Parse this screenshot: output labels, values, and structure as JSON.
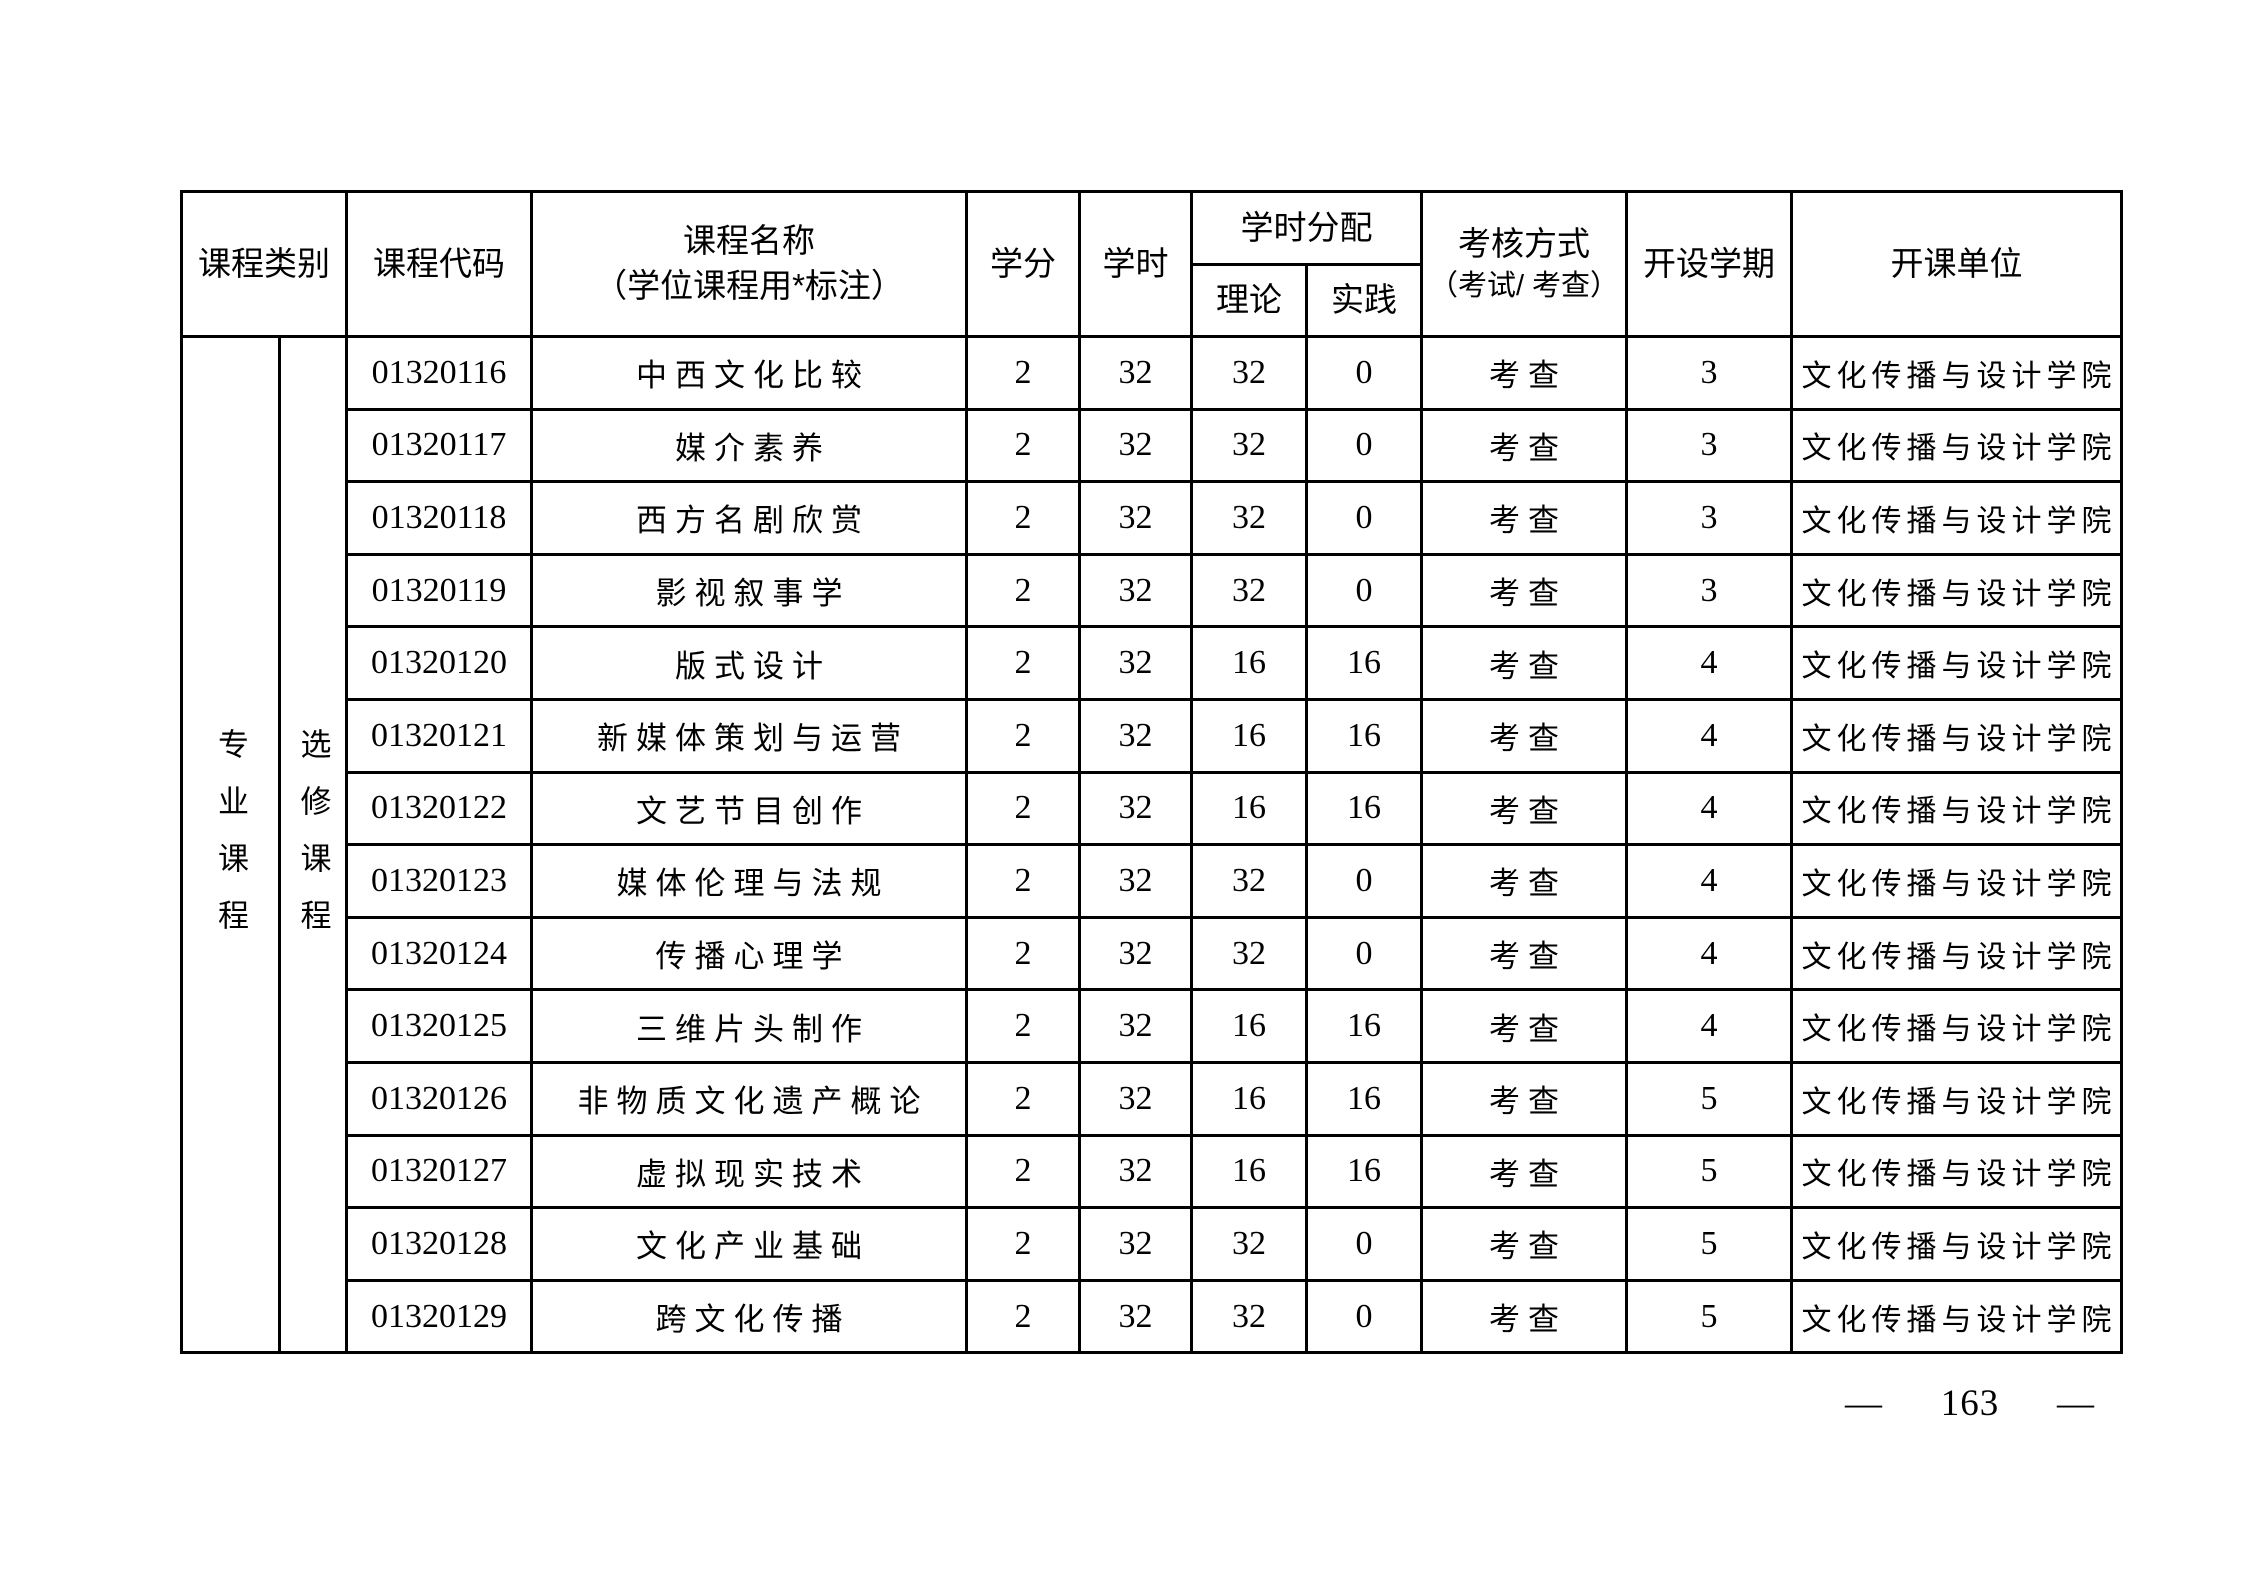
{
  "colors": {
    "ink": "#000000",
    "paper": "#ffffff"
  },
  "page": {
    "dash": "—",
    "number": "163"
  },
  "table": {
    "headers": {
      "category": "课程类别",
      "code": "课程代码",
      "name_line1": "课程名称",
      "name_line2": "（学位课程用*标注）",
      "credits": "学分",
      "hours": "学时",
      "hours_allocation": "学时分配",
      "theory": "理论",
      "practice": "实践",
      "assessment_line1": "考核方式",
      "assessment_line2": "（考试/ 考查）",
      "semester": "开设学期",
      "unit": "开课单位"
    },
    "categories": {
      "primary": "专业课程",
      "secondary": "选修课程"
    },
    "rows": [
      {
        "code": "01320116",
        "name": "中西文化比较",
        "credits": "2",
        "hours": "32",
        "theory": "32",
        "practice": "0",
        "assessment": "考查",
        "semester": "3",
        "unit": "文化传播与设计学院"
      },
      {
        "code": "01320117",
        "name": "媒介素养",
        "credits": "2",
        "hours": "32",
        "theory": "32",
        "practice": "0",
        "assessment": "考查",
        "semester": "3",
        "unit": "文化传播与设计学院"
      },
      {
        "code": "01320118",
        "name": "西方名剧欣赏",
        "credits": "2",
        "hours": "32",
        "theory": "32",
        "practice": "0",
        "assessment": "考查",
        "semester": "3",
        "unit": "文化传播与设计学院"
      },
      {
        "code": "01320119",
        "name": "影视叙事学",
        "credits": "2",
        "hours": "32",
        "theory": "32",
        "practice": "0",
        "assessment": "考查",
        "semester": "3",
        "unit": "文化传播与设计学院"
      },
      {
        "code": "01320120",
        "name": "版式设计",
        "credits": "2",
        "hours": "32",
        "theory": "16",
        "practice": "16",
        "assessment": "考查",
        "semester": "4",
        "unit": "文化传播与设计学院"
      },
      {
        "code": "01320121",
        "name": "新媒体策划与运营",
        "credits": "2",
        "hours": "32",
        "theory": "16",
        "practice": "16",
        "assessment": "考查",
        "semester": "4",
        "unit": "文化传播与设计学院"
      },
      {
        "code": "01320122",
        "name": "文艺节目创作",
        "credits": "2",
        "hours": "32",
        "theory": "16",
        "practice": "16",
        "assessment": "考查",
        "semester": "4",
        "unit": "文化传播与设计学院"
      },
      {
        "code": "01320123",
        "name": "媒体伦理与法规",
        "credits": "2",
        "hours": "32",
        "theory": "32",
        "practice": "0",
        "assessment": "考查",
        "semester": "4",
        "unit": "文化传播与设计学院"
      },
      {
        "code": "01320124",
        "name": "传播心理学",
        "credits": "2",
        "hours": "32",
        "theory": "32",
        "practice": "0",
        "assessment": "考查",
        "semester": "4",
        "unit": "文化传播与设计学院"
      },
      {
        "code": "01320125",
        "name": "三维片头制作",
        "credits": "2",
        "hours": "32",
        "theory": "16",
        "practice": "16",
        "assessment": "考查",
        "semester": "4",
        "unit": "文化传播与设计学院"
      },
      {
        "code": "01320126",
        "name": "非物质文化遗产概论",
        "credits": "2",
        "hours": "32",
        "theory": "16",
        "practice": "16",
        "assessment": "考查",
        "semester": "5",
        "unit": "文化传播与设计学院"
      },
      {
        "code": "01320127",
        "name": "虚拟现实技术",
        "credits": "2",
        "hours": "32",
        "theory": "16",
        "practice": "16",
        "assessment": "考查",
        "semester": "5",
        "unit": "文化传播与设计学院"
      },
      {
        "code": "01320128",
        "name": "文化产业基础",
        "credits": "2",
        "hours": "32",
        "theory": "32",
        "practice": "0",
        "assessment": "考查",
        "semester": "5",
        "unit": "文化传播与设计学院"
      },
      {
        "code": "01320129",
        "name": "跨文化传播",
        "credits": "2",
        "hours": "32",
        "theory": "32",
        "practice": "0",
        "assessment": "考查",
        "semester": "5",
        "unit": "文化传播与设计学院"
      }
    ]
  }
}
